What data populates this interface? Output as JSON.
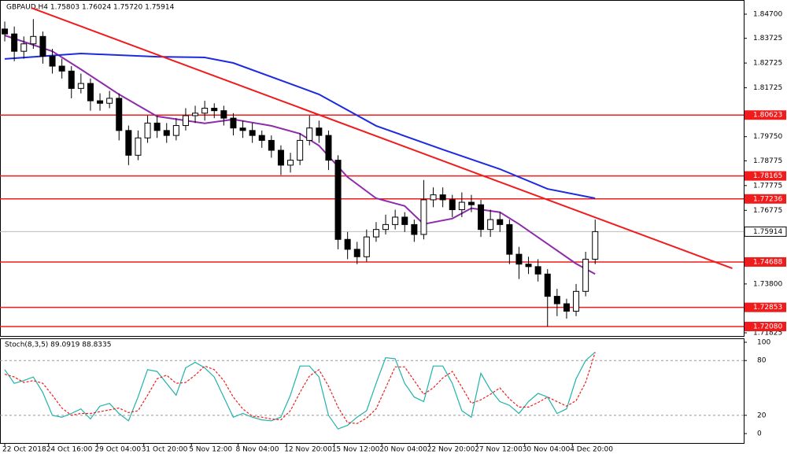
{
  "chart_data": {
    "type": "candlestick",
    "title": "GBPAUD,H4 1.75803 1.76024 1.75720 1.75914",
    "xlim": [
      -0.5,
      77.6
    ],
    "ylim": [
      1.71698,
      1.85272
    ],
    "yticks": [
      {
        "value": 1.847,
        "label": "1.84700"
      },
      {
        "value": 1.83725,
        "label": "1.83725"
      },
      {
        "value": 1.82725,
        "label": "1.82725"
      },
      {
        "value": 1.81725,
        "label": "1.81725"
      },
      {
        "value": 1.7975,
        "label": "1.79750"
      },
      {
        "value": 1.78775,
        "label": "1.78775"
      },
      {
        "value": 1.77775,
        "label": "1.77775"
      },
      {
        "value": 1.76775,
        "label": "1.76775"
      },
      {
        "value": 1.738,
        "label": "1.73800"
      },
      {
        "value": 1.71825,
        "label": "1.71825"
      }
    ],
    "xticks": [
      {
        "value": 0,
        "label": "22 Oct 2018"
      },
      {
        "value": 4.6,
        "label": "24 Oct 16:00"
      },
      {
        "value": 9.7,
        "label": "29 Oct 04:00"
      },
      {
        "value": 14.6,
        "label": "31 Oct 20:00"
      },
      {
        "value": 19.6,
        "label": "5 Nov 12:00"
      },
      {
        "value": 24.5,
        "label": "8 Nov 04:00"
      },
      {
        "value": 29.6,
        "label": "12 Nov 20:00"
      },
      {
        "value": 34.6,
        "label": "15 Nov 12:00"
      },
      {
        "value": 39.6,
        "label": "20 Nov 04:00"
      },
      {
        "value": 44.6,
        "label": "22 Nov 20:00"
      },
      {
        "value": 49.6,
        "label": "27 Nov 12:00"
      },
      {
        "value": 54.6,
        "label": "30 Nov 04:00"
      },
      {
        "value": 59.6,
        "label": "4 Dec 20:00"
      }
    ],
    "open": [
      1.841,
      1.839,
      1.832,
      1.835,
      1.838,
      1.83,
      1.826,
      1.824,
      1.817,
      1.819,
      1.812,
      1.811,
      1.813,
      1.8,
      1.79,
      1.797,
      1.803,
      1.8,
      1.798,
      1.802,
      1.806,
      1.807,
      1.809,
      1.808,
      1.805,
      1.801,
      1.8,
      1.798,
      1.796,
      1.792,
      1.786,
      1.788,
      1.796,
      1.801,
      1.798,
      1.788,
      1.756,
      1.752,
      1.749,
      1.757,
      1.76,
      1.762,
      1.765,
      1.762,
      1.758,
      1.772,
      1.774,
      1.772,
      1.768,
      1.771,
      1.77,
      1.76,
      1.764,
      1.762,
      1.75,
      1.746,
      1.745,
      1.742,
      1.733,
      1.73,
      1.727,
      1.735,
      1.748
    ],
    "high": [
      1.844,
      1.842,
      1.838,
      1.845,
      1.84,
      1.833,
      1.829,
      1.826,
      1.823,
      1.821,
      1.815,
      1.816,
      1.815,
      1.802,
      1.8,
      1.806,
      1.806,
      1.803,
      1.805,
      1.809,
      1.81,
      1.812,
      1.811,
      1.81,
      1.807,
      1.804,
      1.803,
      1.8,
      1.798,
      1.794,
      1.791,
      1.799,
      1.806,
      1.804,
      1.8,
      1.79,
      1.759,
      1.755,
      1.76,
      1.763,
      1.766,
      1.768,
      1.767,
      1.764,
      1.78,
      1.777,
      1.777,
      1.774,
      1.775,
      1.774,
      1.772,
      1.768,
      1.767,
      1.764,
      1.753,
      1.749,
      1.748,
      1.744,
      1.736,
      1.732,
      1.738,
      1.751,
      1.764
    ],
    "low": [
      1.836,
      1.828,
      1.829,
      1.833,
      1.827,
      1.823,
      1.821,
      1.813,
      1.815,
      1.808,
      1.808,
      1.809,
      1.796,
      1.786,
      1.788,
      1.795,
      1.797,
      1.795,
      1.796,
      1.8,
      1.803,
      1.804,
      1.805,
      1.802,
      1.798,
      1.797,
      1.795,
      1.793,
      1.789,
      1.782,
      1.783,
      1.786,
      1.794,
      1.795,
      1.784,
      1.752,
      1.748,
      1.746,
      1.747,
      1.755,
      1.758,
      1.76,
      1.759,
      1.755,
      1.756,
      1.769,
      1.769,
      1.765,
      1.765,
      1.767,
      1.757,
      1.757,
      1.759,
      1.746,
      1.74,
      1.742,
      1.739,
      1.7208,
      1.725,
      1.724,
      1.725,
      1.733,
      1.746
    ],
    "close": [
      1.839,
      1.832,
      1.835,
      1.838,
      1.83,
      1.826,
      1.824,
      1.817,
      1.819,
      1.812,
      1.811,
      1.813,
      1.8,
      1.79,
      1.797,
      1.803,
      1.8,
      1.798,
      1.802,
      1.806,
      1.807,
      1.809,
      1.808,
      1.805,
      1.801,
      1.8,
      1.798,
      1.796,
      1.792,
      1.786,
      1.788,
      1.796,
      1.801,
      1.798,
      1.788,
      1.756,
      1.752,
      1.749,
      1.757,
      1.76,
      1.762,
      1.765,
      1.762,
      1.758,
      1.772,
      1.774,
      1.772,
      1.768,
      1.771,
      1.77,
      1.76,
      1.764,
      1.762,
      1.75,
      1.746,
      1.745,
      1.742,
      1.733,
      1.73,
      1.727,
      1.735,
      1.748,
      1.75914
    ],
    "lines": [
      {
        "color": "#8e2bab",
        "x": [
          0,
          5,
          8,
          12,
          16,
          21,
          24,
          28,
          31,
          33,
          36,
          39,
          42,
          44,
          47,
          49,
          52,
          54,
          57,
          60,
          62
        ],
        "values": [
          1.8384,
          1.832,
          1.8247,
          1.8146,
          1.8057,
          1.8029,
          1.8045,
          1.8019,
          1.7987,
          1.7939,
          1.7812,
          1.7726,
          1.7695,
          1.7622,
          1.7644,
          1.7686,
          1.767,
          1.7622,
          1.7542,
          1.7462,
          1.742
        ]
      },
      {
        "color": "#1c2be0",
        "x": [
          0,
          8,
          16,
          21,
          24,
          33,
          39,
          46,
          52,
          57,
          62
        ],
        "values": [
          1.8289,
          1.8311,
          1.8298,
          1.8295,
          1.8273,
          1.8146,
          1.8019,
          1.7923,
          1.7844,
          1.7764,
          1.7726
        ]
      },
      {
        "color": "#f01c1c",
        "x": [
          2.8,
          76.4
        ],
        "values": [
          1.8495,
          1.7443
        ]
      }
    ],
    "levels": [
      1.80623,
      1.78165,
      1.77236,
      1.74688,
      1.72853,
      {
        "value": 1.7208,
        "label": "1.72080"
      }
    ],
    "level_color": "#f01c1c",
    "current_price": 1.75914,
    "stochastic": {
      "label": "Stoch(8,3,5) 89.0919 88.8335",
      "y2lim": [
        -10.3,
        104.3
      ],
      "y2ticks": [
        100,
        80,
        20,
        0
      ],
      "levels": [
        80,
        20
      ],
      "series": [
        {
          "color": "#20b2aa",
          "axis": "y2",
          "values": [
            70,
            55,
            58,
            62,
            45,
            20,
            18,
            22,
            27,
            16,
            30,
            33,
            22,
            14,
            40,
            70,
            68,
            55,
            42,
            72,
            78,
            72,
            62,
            40,
            18,
            22,
            18,
            15,
            14,
            18,
            42,
            74,
            74,
            62,
            20,
            5,
            9,
            18,
            25,
            55,
            83,
            82,
            55,
            40,
            35,
            74,
            74,
            55,
            25,
            18,
            66,
            48,
            35,
            31,
            22,
            35,
            44,
            40,
            22,
            27,
            60,
            80,
            89.0919
          ]
        },
        {
          "color": "#f01c1c",
          "axis": "y2",
          "values": [
            65,
            62,
            56,
            58,
            55,
            42,
            28,
            20,
            22,
            22,
            24,
            26,
            28,
            23,
            25,
            42,
            60,
            64,
            55,
            56,
            64,
            74,
            70,
            58,
            40,
            27,
            19,
            18,
            16,
            15,
            25,
            45,
            63,
            70,
            52,
            29,
            12,
            11,
            17,
            27,
            50,
            73,
            73,
            58,
            43,
            50,
            61,
            68,
            51,
            33,
            37,
            43,
            50,
            38,
            29,
            29,
            34,
            40,
            35,
            30,
            36,
            56,
            88.8335
          ]
        }
      ]
    }
  }
}
